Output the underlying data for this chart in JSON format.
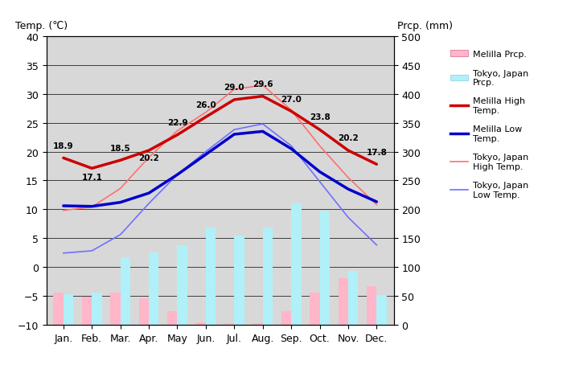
{
  "months": [
    "Jan.",
    "Feb.",
    "Mar.",
    "Apr.",
    "May",
    "Jun.",
    "Jul.",
    "Aug.",
    "Sep.",
    "Oct.",
    "Nov.",
    "Dec."
  ],
  "melilla_high": [
    18.9,
    17.1,
    18.5,
    20.2,
    22.9,
    26.0,
    29.0,
    29.6,
    27.0,
    23.8,
    20.2,
    17.8
  ],
  "melilla_low": [
    10.6,
    10.5,
    11.2,
    12.8,
    16.0,
    19.5,
    23.0,
    23.5,
    20.5,
    16.5,
    13.5,
    11.3
  ],
  "tokyo_high": [
    9.8,
    10.4,
    13.6,
    19.0,
    23.6,
    26.8,
    30.8,
    31.5,
    27.2,
    21.0,
    15.5,
    10.8
  ],
  "tokyo_low": [
    2.4,
    2.8,
    5.6,
    11.0,
    16.0,
    20.0,
    23.8,
    24.8,
    21.0,
    14.8,
    8.6,
    3.8
  ],
  "melilla_prcp_mm": [
    56,
    48,
    55,
    46,
    24,
    4,
    2,
    3,
    24,
    55,
    80,
    67
  ],
  "tokyo_prcp_mm": [
    52,
    56,
    117,
    125,
    138,
    168,
    154,
    168,
    210,
    197,
    93,
    51
  ],
  "bg_color": "#d8d8d8",
  "melilla_high_color": "#cc0000",
  "melilla_low_color": "#0000cc",
  "tokyo_high_color": "#ff7070",
  "tokyo_low_color": "#7070ff",
  "melilla_prcp_color": "#ffb6c8",
  "tokyo_prcp_color": "#b0f0f8",
  "label_values": [
    "18.9",
    "17.1",
    "18.5",
    "20.2",
    "22.9",
    "26.0",
    "29.0",
    "29.6",
    "27.0",
    "23.8",
    "20.2",
    "17.8"
  ],
  "ylim_left": [
    -10,
    40
  ],
  "ylim_right": [
    0,
    500
  ],
  "title_left": "Temp. (℃)",
  "title_right": "Prcp. (mm)",
  "legend_labels": [
    "Melilla Prcp.",
    "Tokyo, Japan\nPrcp.",
    "Melilla High\nTemp.",
    "Melilla Low\nTemp.",
    "Tokyo, Japan\nHigh Temp.",
    "Tokyo, Japan\nLow Temp."
  ]
}
